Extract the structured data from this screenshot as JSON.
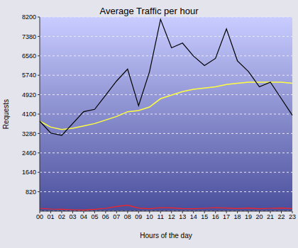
{
  "chart_data": {
    "type": "line",
    "title": "Average Traffic per hour",
    "x_label": "Hours of the day",
    "y_label": "Requests",
    "categories": [
      "00",
      "01",
      "02",
      "03",
      "04",
      "05",
      "06",
      "07",
      "08",
      "09",
      "10",
      "11",
      "12",
      "13",
      "14",
      "15",
      "16",
      "17",
      "18",
      "19",
      "20",
      "21",
      "22",
      "23"
    ],
    "series": [
      {
        "color": "#ff2020",
        "values": [
          120,
          90,
          80,
          60,
          50,
          80,
          120,
          200,
          250,
          130,
          100,
          150,
          140,
          110,
          100,
          120,
          150,
          130,
          110,
          130,
          100,
          120,
          130,
          110
        ]
      },
      {
        "color": "#ffff40",
        "values": [
          3800,
          3550,
          3450,
          3500,
          3600,
          3700,
          3850,
          4000,
          4200,
          4250,
          4400,
          4750,
          4900,
          5050,
          5150,
          5200,
          5250,
          5350,
          5400,
          5450,
          5450,
          5450,
          5450,
          5400
        ]
      },
      {
        "color": "#000000",
        "values": [
          3800,
          3300,
          3200,
          3700,
          4200,
          4300,
          4900,
          5500,
          6000,
          4450,
          5900,
          8100,
          6900,
          7100,
          6550,
          6150,
          6450,
          7700,
          6350,
          5900,
          5250,
          5450,
          4750,
          4050
        ]
      }
    ],
    "ylim": [
      0,
      8200
    ],
    "yticks": [
      820,
      1640,
      2460,
      3280,
      4100,
      4920,
      5740,
      6560,
      7380,
      8200
    ],
    "grid": true
  }
}
